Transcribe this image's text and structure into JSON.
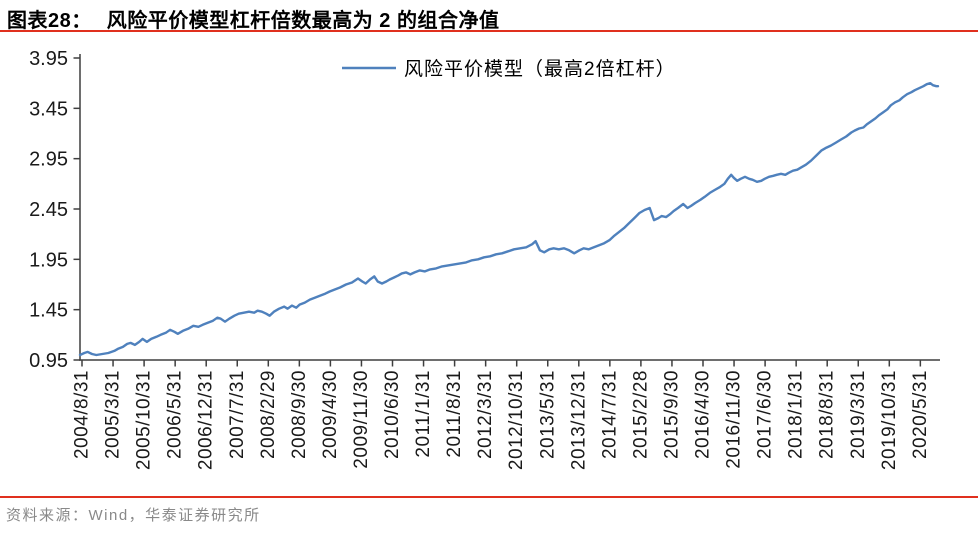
{
  "header": {
    "figure_label": "图表28：",
    "title": "风险平价模型杠杆倍数最高为 2 的组合净值"
  },
  "source": "资料来源：Wind，华泰证券研究所",
  "colors": {
    "rule_red": "#e0301e",
    "series_blue": "#4F81BD",
    "axis": "#3f3f3f",
    "tick_label": "#1a1a1a",
    "source_gray": "#898989"
  },
  "chart_data": {
    "type": "line",
    "title": "",
    "xlabel": "",
    "ylabel": "",
    "grid": false,
    "legend_position": "top-center",
    "ylim": [
      0.95,
      3.95
    ],
    "y_ticks": [
      0.95,
      1.45,
      1.95,
      2.45,
      2.95,
      3.45,
      3.95
    ],
    "x_tick_labels": [
      "2004/8/31",
      "2005/3/31",
      "2005/10/31",
      "2006/5/31",
      "2006/12/31",
      "2007/7/31",
      "2008/2/29",
      "2008/9/30",
      "2009/4/30",
      "2009/11/30",
      "2010/6/30",
      "2011/1/31",
      "2011/8/31",
      "2012/3/31",
      "2012/10/31",
      "2013/5/31",
      "2013/12/31",
      "2014/7/31",
      "2015/2/28",
      "2015/9/30",
      "2016/4/30",
      "2016/11/30",
      "2017/6/30",
      "2018/1/31",
      "2018/8/31",
      "2019/3/31",
      "2019/10/31",
      "2020/5/31"
    ],
    "series": [
      {
        "name": "风险平价模型（最高2倍杠杆）",
        "color": "#4F81BD",
        "points": [
          [
            0.0,
            1.0
          ],
          [
            0.005,
            1.02
          ],
          [
            0.009,
            1.03
          ],
          [
            0.014,
            1.01
          ],
          [
            0.019,
            1.0
          ],
          [
            0.026,
            1.01
          ],
          [
            0.033,
            1.02
          ],
          [
            0.04,
            1.04
          ],
          [
            0.044,
            1.06
          ],
          [
            0.05,
            1.08
          ],
          [
            0.055,
            1.11
          ],
          [
            0.059,
            1.12
          ],
          [
            0.064,
            1.1
          ],
          [
            0.069,
            1.13
          ],
          [
            0.073,
            1.16
          ],
          [
            0.078,
            1.13
          ],
          [
            0.083,
            1.16
          ],
          [
            0.089,
            1.18
          ],
          [
            0.094,
            1.2
          ],
          [
            0.1,
            1.22
          ],
          [
            0.105,
            1.25
          ],
          [
            0.11,
            1.23
          ],
          [
            0.114,
            1.21
          ],
          [
            0.12,
            1.24
          ],
          [
            0.126,
            1.26
          ],
          [
            0.132,
            1.29
          ],
          [
            0.138,
            1.28
          ],
          [
            0.143,
            1.3
          ],
          [
            0.149,
            1.32
          ],
          [
            0.155,
            1.34
          ],
          [
            0.16,
            1.37
          ],
          [
            0.164,
            1.36
          ],
          [
            0.169,
            1.33
          ],
          [
            0.174,
            1.36
          ],
          [
            0.18,
            1.39
          ],
          [
            0.185,
            1.41
          ],
          [
            0.191,
            1.42
          ],
          [
            0.197,
            1.43
          ],
          [
            0.203,
            1.42
          ],
          [
            0.207,
            1.44
          ],
          [
            0.212,
            1.43
          ],
          [
            0.217,
            1.41
          ],
          [
            0.221,
            1.39
          ],
          [
            0.226,
            1.43
          ],
          [
            0.232,
            1.46
          ],
          [
            0.238,
            1.48
          ],
          [
            0.242,
            1.46
          ],
          [
            0.247,
            1.49
          ],
          [
            0.252,
            1.47
          ],
          [
            0.256,
            1.5
          ],
          [
            0.262,
            1.52
          ],
          [
            0.268,
            1.55
          ],
          [
            0.274,
            1.57
          ],
          [
            0.28,
            1.59
          ],
          [
            0.286,
            1.61
          ],
          [
            0.291,
            1.63
          ],
          [
            0.297,
            1.65
          ],
          [
            0.303,
            1.67
          ],
          [
            0.31,
            1.7
          ],
          [
            0.317,
            1.72
          ],
          [
            0.324,
            1.76
          ],
          [
            0.329,
            1.73
          ],
          [
            0.333,
            1.71
          ],
          [
            0.338,
            1.75
          ],
          [
            0.343,
            1.78
          ],
          [
            0.347,
            1.73
          ],
          [
            0.352,
            1.71
          ],
          [
            0.357,
            1.73
          ],
          [
            0.361,
            1.75
          ],
          [
            0.366,
            1.77
          ],
          [
            0.371,
            1.79
          ],
          [
            0.375,
            1.81
          ],
          [
            0.38,
            1.82
          ],
          [
            0.385,
            1.8
          ],
          [
            0.39,
            1.82
          ],
          [
            0.396,
            1.84
          ],
          [
            0.402,
            1.83
          ],
          [
            0.408,
            1.85
          ],
          [
            0.415,
            1.86
          ],
          [
            0.422,
            1.88
          ],
          [
            0.429,
            1.89
          ],
          [
            0.436,
            1.9
          ],
          [
            0.443,
            1.91
          ],
          [
            0.45,
            1.92
          ],
          [
            0.457,
            1.94
          ],
          [
            0.464,
            1.95
          ],
          [
            0.471,
            1.97
          ],
          [
            0.478,
            1.98
          ],
          [
            0.485,
            2.0
          ],
          [
            0.492,
            2.01
          ],
          [
            0.499,
            2.03
          ],
          [
            0.506,
            2.05
          ],
          [
            0.513,
            2.06
          ],
          [
            0.52,
            2.07
          ],
          [
            0.527,
            2.1
          ],
          [
            0.531,
            2.13
          ],
          [
            0.536,
            2.04
          ],
          [
            0.541,
            2.02
          ],
          [
            0.547,
            2.05
          ],
          [
            0.552,
            2.06
          ],
          [
            0.558,
            2.05
          ],
          [
            0.564,
            2.06
          ],
          [
            0.57,
            2.04
          ],
          [
            0.576,
            2.01
          ],
          [
            0.582,
            2.04
          ],
          [
            0.587,
            2.06
          ],
          [
            0.593,
            2.05
          ],
          [
            0.599,
            2.07
          ],
          [
            0.605,
            2.09
          ],
          [
            0.611,
            2.11
          ],
          [
            0.617,
            2.14
          ],
          [
            0.622,
            2.18
          ],
          [
            0.628,
            2.22
          ],
          [
            0.634,
            2.26
          ],
          [
            0.64,
            2.31
          ],
          [
            0.646,
            2.36
          ],
          [
            0.652,
            2.41
          ],
          [
            0.658,
            2.44
          ],
          [
            0.664,
            2.46
          ],
          [
            0.669,
            2.34
          ],
          [
            0.674,
            2.36
          ],
          [
            0.678,
            2.38
          ],
          [
            0.683,
            2.37
          ],
          [
            0.688,
            2.4
          ],
          [
            0.692,
            2.43
          ],
          [
            0.697,
            2.46
          ],
          [
            0.703,
            2.5
          ],
          [
            0.708,
            2.46
          ],
          [
            0.712,
            2.48
          ],
          [
            0.717,
            2.51
          ],
          [
            0.723,
            2.54
          ],
          [
            0.728,
            2.57
          ],
          [
            0.734,
            2.61
          ],
          [
            0.74,
            2.64
          ],
          [
            0.746,
            2.67
          ],
          [
            0.751,
            2.7
          ],
          [
            0.755,
            2.75
          ],
          [
            0.759,
            2.79
          ],
          [
            0.762,
            2.76
          ],
          [
            0.766,
            2.73
          ],
          [
            0.77,
            2.75
          ],
          [
            0.775,
            2.77
          ],
          [
            0.78,
            2.75
          ],
          [
            0.784,
            2.74
          ],
          [
            0.789,
            2.72
          ],
          [
            0.794,
            2.73
          ],
          [
            0.798,
            2.75
          ],
          [
            0.803,
            2.77
          ],
          [
            0.808,
            2.78
          ],
          [
            0.812,
            2.79
          ],
          [
            0.817,
            2.8
          ],
          [
            0.822,
            2.79
          ],
          [
            0.826,
            2.81
          ],
          [
            0.831,
            2.83
          ],
          [
            0.836,
            2.84
          ],
          [
            0.84,
            2.86
          ],
          [
            0.846,
            2.89
          ],
          [
            0.852,
            2.93
          ],
          [
            0.858,
            2.98
          ],
          [
            0.864,
            3.03
          ],
          [
            0.87,
            3.06
          ],
          [
            0.875,
            3.08
          ],
          [
            0.881,
            3.11
          ],
          [
            0.887,
            3.14
          ],
          [
            0.893,
            3.17
          ],
          [
            0.899,
            3.21
          ],
          [
            0.903,
            3.23
          ],
          [
            0.908,
            3.25
          ],
          [
            0.913,
            3.26
          ],
          [
            0.917,
            3.29
          ],
          [
            0.922,
            3.32
          ],
          [
            0.927,
            3.35
          ],
          [
            0.931,
            3.38
          ],
          [
            0.936,
            3.41
          ],
          [
            0.941,
            3.44
          ],
          [
            0.945,
            3.48
          ],
          [
            0.95,
            3.51
          ],
          [
            0.955,
            3.53
          ],
          [
            0.959,
            3.56
          ],
          [
            0.964,
            3.59
          ],
          [
            0.969,
            3.61
          ],
          [
            0.973,
            3.63
          ],
          [
            0.978,
            3.65
          ],
          [
            0.983,
            3.67
          ],
          [
            0.987,
            3.69
          ],
          [
            0.991,
            3.7
          ],
          [
            0.994,
            3.68
          ],
          [
            0.998,
            3.67
          ],
          [
            1.0,
            3.67
          ]
        ]
      }
    ]
  }
}
